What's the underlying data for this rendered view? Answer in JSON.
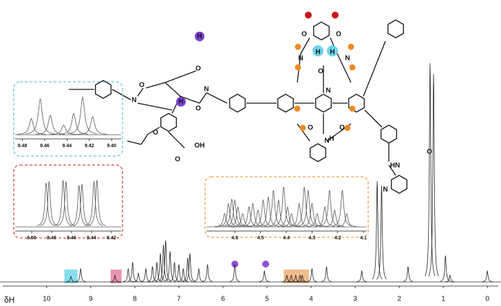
{
  "chart_data": [
    {
      "type": "spectrum",
      "x_label": "δH",
      "xlim": [
        11.06,
        -0.31
      ],
      "xticks": [
        10,
        9,
        8,
        7,
        6,
        5,
        4,
        3,
        2,
        1,
        0
      ],
      "ylim": [
        0,
        100
      ],
      "color": "#222222",
      "x": [
        9.45,
        9.23,
        8.45,
        8.15,
        8.05,
        7.92,
        7.75,
        7.6,
        7.5,
        7.42,
        7.35,
        7.3,
        7.2,
        7.1,
        7.0,
        6.9,
        6.8,
        6.75,
        6.55,
        6.35,
        5.73,
        5.06,
        4.55,
        4.45,
        4.35,
        4.25,
        4.2,
        3.98,
        3.65,
        2.85,
        2.5,
        2.4,
        1.8,
        1.3,
        1.22,
        0.95,
        0.85,
        0.0
      ],
      "values": [
        2.5,
        6,
        3,
        6,
        9,
        4,
        6,
        7,
        9,
        13,
        17,
        19,
        14,
        9,
        8,
        6,
        11,
        13,
        6,
        8,
        8,
        5,
        3,
        3,
        3,
        3,
        3,
        6,
        7,
        5,
        46,
        44,
        7,
        100,
        95,
        12,
        3,
        5
      ],
      "highlights": [
        {
          "range": [
            9.6,
            9.3
          ],
          "color": "#5fd3e6"
        },
        {
          "range": [
            8.55,
            8.3
          ],
          "color": "#e0739a"
        },
        {
          "range": [
            4.62,
            4.05
          ],
          "color": "#eba564"
        }
      ],
      "markers": {
        "x": [
          5.73,
          5.03
        ],
        "color": "#8b4fd6"
      }
    },
    {
      "type": "spectrum",
      "frame_color": "#6cc4e4",
      "xlim": [
        9.4865,
        9.3915
      ],
      "xticks": [
        9.48,
        9.46,
        9.44,
        9.42,
        {
          "value": 9.4,
          "label": "9.40"
        }
      ],
      "ylim": [
        0,
        70
      ],
      "color": "#555555",
      "x": [
        9.472,
        9.464,
        9.455,
        9.443,
        9.434,
        9.426,
        9.417
      ],
      "values": [
        25,
        55,
        30,
        15,
        33,
        58,
        28
      ]
    },
    {
      "type": "spectrum",
      "frame_color": "#d9483f",
      "xlim": [
        8.5166,
        8.4102
      ],
      "xticks": [
        {
          "value": 8.5,
          "label": "8.50"
        },
        8.48,
        8.46,
        8.44,
        8.42
      ],
      "ylim": [
        0,
        80
      ],
      "color": "#555555",
      "x": [
        8.4855,
        8.4825,
        8.4685,
        8.4655,
        8.4525,
        8.4495,
        8.4375,
        8.4345
      ],
      "values": [
        66,
        68,
        70,
        68,
        62,
        64,
        68,
        70
      ]
    },
    {
      "type": "spectrum",
      "frame_color": "#f0a04b",
      "xlim": [
        4.7105,
        4.0868
      ],
      "xticks": [
        4.6,
        4.5,
        4.4,
        4.3,
        4.2,
        4.1
      ],
      "ylim": [
        0,
        70
      ],
      "color": "#555555",
      "x": [
        4.64,
        4.625,
        4.612,
        4.6,
        4.588,
        4.57,
        4.545,
        4.53,
        4.51,
        4.49,
        4.47,
        4.45,
        4.43,
        4.41,
        4.395,
        4.38,
        4.35,
        4.33,
        4.315,
        4.3,
        4.28,
        4.25,
        4.232,
        4.212,
        4.182,
        4.165
      ],
      "values": [
        20,
        35,
        42,
        40,
        30,
        20,
        30,
        35,
        25,
        40,
        45,
        55,
        40,
        60,
        30,
        20,
        35,
        60,
        55,
        35,
        20,
        30,
        55,
        25,
        55,
        20
      ]
    }
  ],
  "structure": {
    "atoms": [
      "N",
      "O",
      "O",
      "N",
      "O",
      "H",
      "H",
      "O",
      "OH",
      "O",
      "O",
      "O",
      "N",
      "N",
      "H",
      "H",
      "O",
      "O",
      "O",
      "N",
      "H",
      "N",
      "O",
      "HN",
      "N"
    ]
  }
}
